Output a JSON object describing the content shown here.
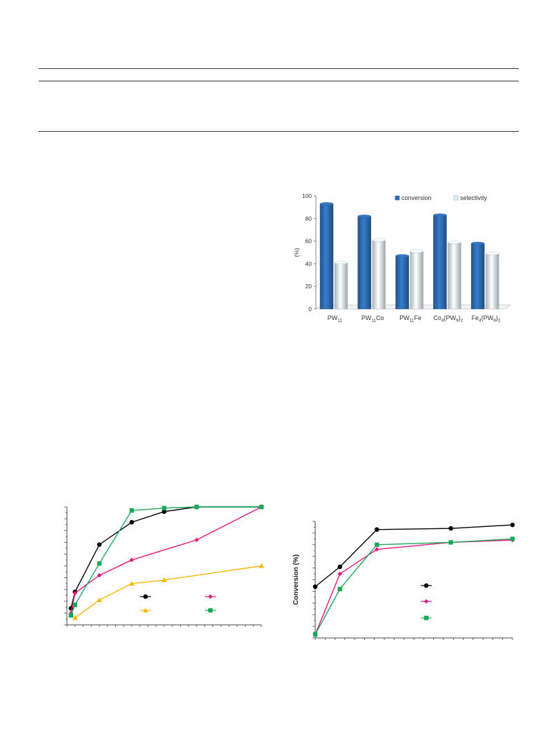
{
  "chart_data": [
    {
      "type": "bar",
      "categories": [
        "PW11",
        "PW11Co",
        "PW11Fe",
        "Co4(PW9)2",
        "Fe4(PW9)2"
      ],
      "category_labels": [
        [
          {
            "t": "PW"
          },
          {
            "t": "11",
            "sub": true
          }
        ],
        [
          {
            "t": "PW"
          },
          {
            "t": "11",
            "sub": true
          },
          {
            "t": "Co"
          }
        ],
        [
          {
            "t": "PW"
          },
          {
            "t": "11",
            "sub": true
          },
          {
            "t": "Fe"
          }
        ],
        [
          {
            "t": "Co"
          },
          {
            "t": "4",
            "sub": true
          },
          {
            "t": "(PW"
          },
          {
            "t": "9",
            "sub": true
          },
          {
            "t": ")"
          },
          {
            "t": "2",
            "sub": true
          }
        ],
        [
          {
            "t": "Fe"
          },
          {
            "t": "4",
            "sub": true
          },
          {
            "t": "(PW"
          },
          {
            "t": "9",
            "sub": true
          },
          {
            "t": ")"
          },
          {
            "t": "2",
            "sub": true
          }
        ]
      ],
      "series": [
        {
          "name": "conversion",
          "values": [
            93,
            82,
            47,
            83,
            58
          ],
          "color": "#2f6db3"
        },
        {
          "name": "selectivity",
          "values": [
            41,
            61,
            51,
            59,
            49
          ],
          "color": "#dfeef4"
        }
      ],
      "ylabel": "(%)",
      "ylim": [
        0,
        100
      ],
      "yticks": [
        0,
        20,
        40,
        60,
        80,
        100
      ],
      "legend": "top",
      "grid": false
    },
    {
      "type": "line",
      "xlim": [
        0,
        24
      ],
      "ylim": [
        0,
        100
      ],
      "series": [
        {
          "color": "#000000",
          "marker": "circle",
          "x": [
            0.5,
            1,
            4,
            8,
            12,
            16,
            24
          ],
          "y": [
            14,
            28,
            68,
            87,
            96,
            100,
            100
          ]
        },
        {
          "color": "#e6157a",
          "marker": "diamond",
          "x": [
            0.5,
            1,
            4,
            8,
            16,
            24
          ],
          "y": [
            10,
            27,
            42,
            55,
            72,
            100
          ]
        },
        {
          "color": "#f5b800",
          "marker": "triangle",
          "x": [
            1,
            4,
            8,
            12,
            24
          ],
          "y": [
            6,
            21,
            35,
            38,
            50
          ]
        },
        {
          "color": "#1aa858",
          "marker": "square",
          "x": [
            0.5,
            1,
            4,
            8,
            12,
            16,
            24
          ],
          "y": [
            8,
            17,
            52,
            97,
            99,
            100,
            100
          ]
        }
      ],
      "legend": "lower-right",
      "grid": false
    },
    {
      "type": "line",
      "ylabel": "Conversion (%)",
      "xlim": [
        0,
        8
      ],
      "ylim": [
        0,
        100
      ],
      "series": [
        {
          "color": "#000000",
          "marker": "circle",
          "x": [
            0,
            1,
            2.5,
            5.5,
            8
          ],
          "y": [
            44,
            61,
            93,
            94,
            97
          ]
        },
        {
          "color": "#e6157a",
          "marker": "diamond",
          "x": [
            0,
            1,
            2.5,
            5.5,
            8
          ],
          "y": [
            3,
            55,
            76,
            82,
            84
          ]
        },
        {
          "color": "#1aa858",
          "marker": "square",
          "x": [
            0,
            1,
            2.5,
            5.5,
            8
          ],
          "y": [
            3,
            42,
            80,
            82,
            85
          ]
        }
      ],
      "legend": "center-right",
      "grid": false
    }
  ]
}
